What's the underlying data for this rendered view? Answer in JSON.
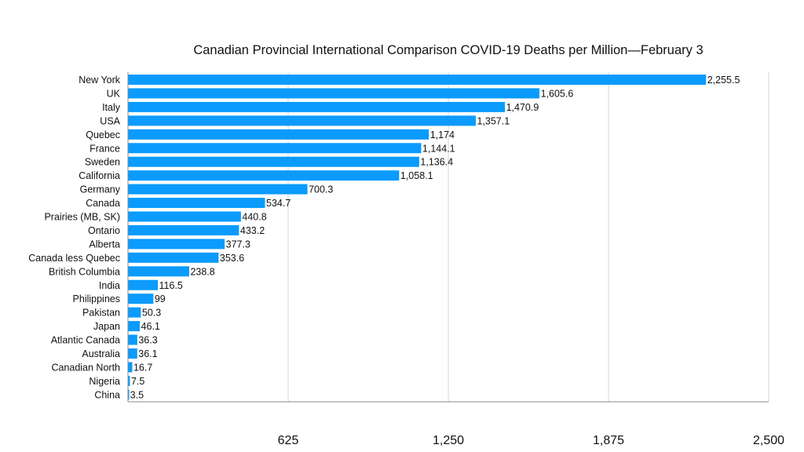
{
  "chart_data": {
    "type": "bar",
    "orientation": "horizontal",
    "title": "Canadian Provincial International Comparison COVID-19 Deaths per Million—February 3",
    "xlabel": "",
    "ylabel": "",
    "xlim": [
      0,
      2500
    ],
    "xticks": [
      625,
      1250,
      1875,
      2500
    ],
    "xtick_labels": [
      "625",
      "1,250",
      "1,875",
      "2,500"
    ],
    "grid": "vertical",
    "bar_color": "#0a9bfc",
    "categories": [
      "New York",
      "UK",
      "Italy",
      "USA",
      "Quebec",
      "France",
      "Sweden",
      "California",
      "Germany",
      "Canada",
      "Prairies (MB, SK)",
      "Ontario",
      "Alberta",
      "Canada less Quebec",
      "British Columbia",
      "India",
      "Philippines",
      "Pakistan",
      "Japan",
      "Atlantic Canada",
      "Australia",
      "Canadian North",
      "Nigeria",
      "China"
    ],
    "values": [
      2255.5,
      1605.6,
      1470.9,
      1357.1,
      1174,
      1144.1,
      1136.4,
      1058.1,
      700.3,
      534.7,
      440.8,
      433.2,
      377.3,
      353.6,
      238.8,
      116.5,
      99,
      50.3,
      46.1,
      36.3,
      36.1,
      16.7,
      7.5,
      3.5
    ],
    "value_labels": [
      "2,255.5",
      "1,605.6",
      "1,470.9",
      "1,357.1",
      "1,174",
      "1,144.1",
      "1,136.4",
      "1,058.1",
      "700.3",
      "534.7",
      "440.8",
      "433.2",
      "377.3",
      "353.6",
      "238.8",
      "116.5",
      "99",
      "50.3",
      "46.1",
      "36.3",
      "36.1",
      "16.7",
      "7.5",
      "3.5"
    ]
  }
}
